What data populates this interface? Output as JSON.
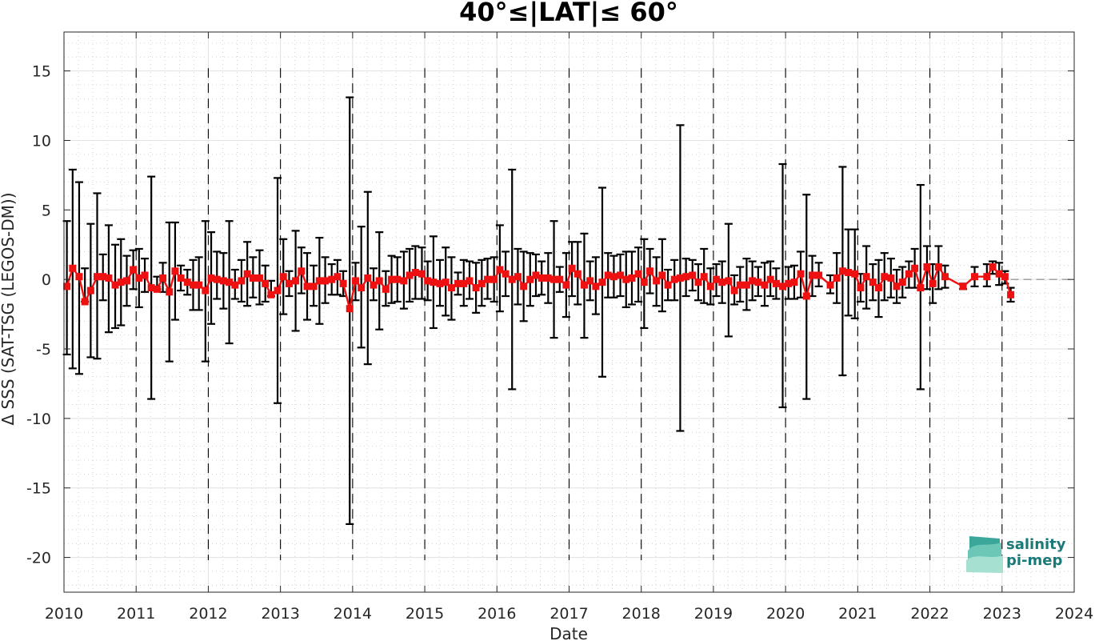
{
  "chart_data": {
    "type": "line",
    "title": "40°≤|LAT|≤ 60°",
    "xlabel": "Date",
    "ylabel": "Δ SSS (SAT-TSG (LEGOS-DM))",
    "xlim": [
      2010,
      2024
    ],
    "ylim": [
      -22.5,
      17.8
    ],
    "xticks": [
      2010,
      2011,
      2012,
      2013,
      2014,
      2015,
      2016,
      2017,
      2018,
      2019,
      2020,
      2021,
      2022,
      2023,
      2024
    ],
    "yticks": [
      -20,
      -15,
      -10,
      -5,
      0,
      5,
      10,
      15
    ],
    "grid": "dotted minor grid",
    "year_separators": "dashed vertical lines at each year",
    "reference_line": {
      "y": 0,
      "style": "dashed gray"
    },
    "series": [
      {
        "color": "#ee1111",
        "marker": "square",
        "errorbar_color": "#000000",
        "points": [
          {
            "x": 2010.04,
            "y": -0.5,
            "lo": -5.4,
            "hi": 4.2
          },
          {
            "x": 2010.12,
            "y": 0.8,
            "lo": -6.4,
            "hi": 7.9
          },
          {
            "x": 2010.21,
            "y": 0.2,
            "lo": -6.8,
            "hi": 7.0
          },
          {
            "x": 2010.29,
            "y": -1.6,
            "lo": -1.6,
            "hi": 0.8
          },
          {
            "x": 2010.37,
            "y": -0.8,
            "lo": -5.6,
            "hi": 4.0
          },
          {
            "x": 2010.46,
            "y": 0.2,
            "lo": -5.7,
            "hi": 6.2
          },
          {
            "x": 2010.54,
            "y": 0.2,
            "lo": -1.5,
            "hi": 1.8
          },
          {
            "x": 2010.62,
            "y": 0.1,
            "lo": -3.8,
            "hi": 3.9
          },
          {
            "x": 2010.71,
            "y": -0.4,
            "lo": -3.5,
            "hi": 2.5
          },
          {
            "x": 2010.79,
            "y": -0.2,
            "lo": -3.3,
            "hi": 2.9
          },
          {
            "x": 2010.87,
            "y": -0.1,
            "lo": -1.9,
            "hi": 1.7
          },
          {
            "x": 2010.96,
            "y": 0.7,
            "lo": -0.7,
            "hi": 2.1
          },
          {
            "x": 2011.04,
            "y": 0.1,
            "lo": -2.0,
            "hi": 2.2
          },
          {
            "x": 2011.12,
            "y": 0.3,
            "lo": -0.9,
            "hi": 1.5
          },
          {
            "x": 2011.21,
            "y": -0.6,
            "lo": -8.6,
            "hi": 7.4
          },
          {
            "x": 2011.29,
            "y": -0.7,
            "lo": -0.7,
            "hi": 0.2
          },
          {
            "x": 2011.37,
            "y": 0.1,
            "lo": -0.9,
            "hi": 1.2
          },
          {
            "x": 2011.46,
            "y": -0.9,
            "lo": -5.9,
            "hi": 4.1
          },
          {
            "x": 2011.54,
            "y": 0.6,
            "lo": -2.9,
            "hi": 4.1
          },
          {
            "x": 2011.62,
            "y": 0.1,
            "lo": -0.8,
            "hi": 1.0
          },
          {
            "x": 2011.71,
            "y": -0.2,
            "lo": -1.1,
            "hi": 0.7
          },
          {
            "x": 2011.79,
            "y": -0.4,
            "lo": -2.2,
            "hi": 1.4
          },
          {
            "x": 2011.87,
            "y": -0.4,
            "lo": -2.2,
            "hi": 1.6
          },
          {
            "x": 2011.96,
            "y": -0.8,
            "lo": -5.9,
            "hi": 4.2
          },
          {
            "x": 2012.04,
            "y": 0.1,
            "lo": -3.2,
            "hi": 3.4
          },
          {
            "x": 2012.12,
            "y": 0.0,
            "lo": -1.4,
            "hi": 2.0
          },
          {
            "x": 2012.21,
            "y": -0.1,
            "lo": -2.1,
            "hi": 1.9
          },
          {
            "x": 2012.29,
            "y": -0.2,
            "lo": -4.6,
            "hi": 4.2
          },
          {
            "x": 2012.37,
            "y": -0.4,
            "lo": -1.4,
            "hi": 0.7
          },
          {
            "x": 2012.46,
            "y": -0.1,
            "lo": -1.6,
            "hi": 1.4
          },
          {
            "x": 2012.54,
            "y": 0.4,
            "lo": -1.9,
            "hi": 2.7
          },
          {
            "x": 2012.62,
            "y": 0.1,
            "lo": -1.3,
            "hi": 1.6
          },
          {
            "x": 2012.71,
            "y": 0.1,
            "lo": -1.8,
            "hi": 2.1
          },
          {
            "x": 2012.79,
            "y": -0.3,
            "lo": -1.6,
            "hi": 1.0
          },
          {
            "x": 2012.87,
            "y": -1.1,
            "lo": -1.2,
            "hi": -0.1
          },
          {
            "x": 2012.96,
            "y": -0.8,
            "lo": -8.9,
            "hi": 7.3
          },
          {
            "x": 2013.04,
            "y": 0.2,
            "lo": -2.5,
            "hi": 2.9
          },
          {
            "x": 2013.12,
            "y": -0.3,
            "lo": -1.2,
            "hi": 0.6
          },
          {
            "x": 2013.21,
            "y": -0.1,
            "lo": -3.7,
            "hi": 3.5
          },
          {
            "x": 2013.29,
            "y": 0.6,
            "lo": -1.0,
            "hi": 2.3
          },
          {
            "x": 2013.37,
            "y": -0.5,
            "lo": -2.9,
            "hi": 1.9
          },
          {
            "x": 2013.46,
            "y": -0.5,
            "lo": -1.9,
            "hi": 1.0
          },
          {
            "x": 2013.54,
            "y": -0.1,
            "lo": -3.2,
            "hi": 3.0
          },
          {
            "x": 2013.62,
            "y": -0.1,
            "lo": -1.7,
            "hi": 1.6
          },
          {
            "x": 2013.71,
            "y": 0.0,
            "lo": -1.1,
            "hi": 1.1
          },
          {
            "x": 2013.79,
            "y": 0.2,
            "lo": -1.1,
            "hi": 1.4
          },
          {
            "x": 2013.87,
            "y": -0.3,
            "lo": -1.2,
            "hi": 0.6
          },
          {
            "x": 2013.96,
            "y": -2.1,
            "lo": -17.6,
            "hi": 13.1
          },
          {
            "x": 2014.04,
            "y": -0.1,
            "lo": -1.5,
            "hi": 1.2
          },
          {
            "x": 2014.12,
            "y": -0.6,
            "lo": -4.9,
            "hi": 3.8
          },
          {
            "x": 2014.21,
            "y": 0.1,
            "lo": -6.1,
            "hi": 6.3
          },
          {
            "x": 2014.29,
            "y": -0.4,
            "lo": -1.5,
            "hi": 0.8
          },
          {
            "x": 2014.37,
            "y": -0.1,
            "lo": -3.6,
            "hi": 3.4
          },
          {
            "x": 2014.46,
            "y": -0.7,
            "lo": -1.9,
            "hi": 0.6
          },
          {
            "x": 2014.54,
            "y": 0.0,
            "lo": -1.7,
            "hi": 1.7
          },
          {
            "x": 2014.62,
            "y": 0.0,
            "lo": -1.6,
            "hi": 1.6
          },
          {
            "x": 2014.71,
            "y": -0.1,
            "lo": -2.1,
            "hi": 2.0
          },
          {
            "x": 2014.79,
            "y": 0.3,
            "lo": -1.6,
            "hi": 2.2
          },
          {
            "x": 2014.87,
            "y": 0.5,
            "lo": -1.4,
            "hi": 2.4
          },
          {
            "x": 2014.96,
            "y": 0.4,
            "lo": -1.4,
            "hi": 2.3
          },
          {
            "x": 2015.04,
            "y": -0.1,
            "lo": -1.5,
            "hi": 1.3
          },
          {
            "x": 2015.12,
            "y": -0.2,
            "lo": -3.5,
            "hi": 3.1
          },
          {
            "x": 2015.21,
            "y": -0.3,
            "lo": -1.9,
            "hi": 1.4
          },
          {
            "x": 2015.29,
            "y": -0.2,
            "lo": -2.6,
            "hi": 2.3
          },
          {
            "x": 2015.37,
            "y": -0.6,
            "lo": -2.9,
            "hi": 1.6
          },
          {
            "x": 2015.46,
            "y": -0.3,
            "lo": -1.1,
            "hi": 0.5
          },
          {
            "x": 2015.54,
            "y": -0.3,
            "lo": -1.9,
            "hi": 1.4
          },
          {
            "x": 2015.62,
            "y": -0.1,
            "lo": -1.4,
            "hi": 1.3
          },
          {
            "x": 2015.71,
            "y": -0.6,
            "lo": -2.4,
            "hi": 1.2
          },
          {
            "x": 2015.79,
            "y": -0.3,
            "lo": -1.9,
            "hi": 1.4
          },
          {
            "x": 2015.87,
            "y": 0.0,
            "lo": -1.4,
            "hi": 1.5
          },
          {
            "x": 2015.96,
            "y": 0.0,
            "lo": -1.6,
            "hi": 1.6
          },
          {
            "x": 2016.04,
            "y": 0.7,
            "lo": -2.3,
            "hi": 3.9
          },
          {
            "x": 2016.12,
            "y": 0.4,
            "lo": -1.2,
            "hi": 2.0
          },
          {
            "x": 2016.21,
            "y": 0.0,
            "lo": -7.9,
            "hi": 7.9
          },
          {
            "x": 2016.29,
            "y": 0.2,
            "lo": -1.8,
            "hi": 2.2
          },
          {
            "x": 2016.37,
            "y": -0.5,
            "lo": -3.0,
            "hi": 2.0
          },
          {
            "x": 2016.46,
            "y": 0.0,
            "lo": -1.9,
            "hi": 1.9
          },
          {
            "x": 2016.54,
            "y": 0.3,
            "lo": -1.2,
            "hi": 1.8
          },
          {
            "x": 2016.62,
            "y": 0.1,
            "lo": -1.1,
            "hi": 1.3
          },
          {
            "x": 2016.71,
            "y": 0.1,
            "lo": -1.7,
            "hi": 1.9
          },
          {
            "x": 2016.79,
            "y": 0.0,
            "lo": -4.2,
            "hi": 4.2
          },
          {
            "x": 2016.87,
            "y": 0.0,
            "lo": -0.9,
            "hi": 0.9
          },
          {
            "x": 2016.96,
            "y": -0.4,
            "lo": -2.7,
            "hi": 1.9
          },
          {
            "x": 2017.04,
            "y": 0.8,
            "lo": -1.2,
            "hi": 2.7
          },
          {
            "x": 2017.12,
            "y": 0.4,
            "lo": -1.8,
            "hi": 2.7
          },
          {
            "x": 2017.21,
            "y": -0.4,
            "lo": -4.2,
            "hi": 3.3
          },
          {
            "x": 2017.29,
            "y": -0.1,
            "lo": -1.5,
            "hi": 1.3
          },
          {
            "x": 2017.37,
            "y": -0.5,
            "lo": -2.5,
            "hi": 1.6
          },
          {
            "x": 2017.46,
            "y": -0.2,
            "lo": -7.0,
            "hi": 6.6
          },
          {
            "x": 2017.54,
            "y": 0.3,
            "lo": -1.3,
            "hi": 1.9
          },
          {
            "x": 2017.62,
            "y": 0.2,
            "lo": -1.3,
            "hi": 1.7
          },
          {
            "x": 2017.71,
            "y": 0.3,
            "lo": -1.2,
            "hi": 1.8
          },
          {
            "x": 2017.79,
            "y": 0.0,
            "lo": -2.0,
            "hi": 2.0
          },
          {
            "x": 2017.87,
            "y": 0.1,
            "lo": -1.8,
            "hi": 2.0
          },
          {
            "x": 2017.96,
            "y": 0.4,
            "lo": -1.6,
            "hi": 2.3
          },
          {
            "x": 2018.04,
            "y": -0.2,
            "lo": -3.5,
            "hi": 2.9
          },
          {
            "x": 2018.12,
            "y": 0.6,
            "lo": -1.0,
            "hi": 2.2
          },
          {
            "x": 2018.21,
            "y": -0.1,
            "lo": -1.9,
            "hi": 1.6
          },
          {
            "x": 2018.29,
            "y": 0.3,
            "lo": -2.3,
            "hi": 2.9
          },
          {
            "x": 2018.37,
            "y": -0.4,
            "lo": -1.5,
            "hi": 0.7
          },
          {
            "x": 2018.46,
            "y": 0.0,
            "lo": -1.5,
            "hi": 1.4
          },
          {
            "x": 2018.54,
            "y": 0.1,
            "lo": -10.9,
            "hi": 11.1
          },
          {
            "x": 2018.62,
            "y": 0.2,
            "lo": -1.2,
            "hi": 1.5
          },
          {
            "x": 2018.71,
            "y": 0.3,
            "lo": -0.8,
            "hi": 1.4
          },
          {
            "x": 2018.79,
            "y": -0.2,
            "lo": -1.5,
            "hi": 1.1
          },
          {
            "x": 2018.87,
            "y": 0.2,
            "lo": -1.7,
            "hi": 2.2
          },
          {
            "x": 2018.96,
            "y": -0.5,
            "lo": -1.8,
            "hi": 0.8
          },
          {
            "x": 2019.04,
            "y": 0.0,
            "lo": -1.2,
            "hi": 1.1
          },
          {
            "x": 2019.12,
            "y": -0.2,
            "lo": -1.7,
            "hi": 1.3
          },
          {
            "x": 2019.21,
            "y": -0.1,
            "lo": -4.1,
            "hi": 4.0
          },
          {
            "x": 2019.29,
            "y": -0.8,
            "lo": -1.8,
            "hi": 0.3
          },
          {
            "x": 2019.37,
            "y": -0.4,
            "lo": -1.6,
            "hi": 0.9
          },
          {
            "x": 2019.46,
            "y": -0.4,
            "lo": -2.2,
            "hi": 1.5
          },
          {
            "x": 2019.54,
            "y": -0.1,
            "lo": -1.5,
            "hi": 1.3
          },
          {
            "x": 2019.62,
            "y": -0.2,
            "lo": -1.2,
            "hi": 0.9
          },
          {
            "x": 2019.71,
            "y": -0.4,
            "lo": -1.9,
            "hi": 1.2
          },
          {
            "x": 2019.79,
            "y": 0.0,
            "lo": -1.2,
            "hi": 1.3
          },
          {
            "x": 2019.87,
            "y": -0.3,
            "lo": -1.4,
            "hi": 0.8
          },
          {
            "x": 2019.96,
            "y": -0.5,
            "lo": -9.2,
            "hi": 8.3
          },
          {
            "x": 2020.04,
            "y": -0.3,
            "lo": -1.4,
            "hi": 0.9
          },
          {
            "x": 2020.12,
            "y": -0.2,
            "lo": -1.4,
            "hi": 1.0
          },
          {
            "x": 2020.21,
            "y": 0.4,
            "lo": -1.3,
            "hi": 2.0
          },
          {
            "x": 2020.29,
            "y": -1.2,
            "lo": -8.6,
            "hi": 6.1
          },
          {
            "x": 2020.37,
            "y": 0.3,
            "lo": -1.2,
            "hi": 1.7
          },
          {
            "x": 2020.46,
            "y": 0.3,
            "lo": -0.5,
            "hi": 1.2
          },
          {
            "x": 2020.62,
            "y": -0.4,
            "lo": -1.0,
            "hi": 0.3
          },
          {
            "x": 2020.71,
            "y": 0.1,
            "lo": -1.7,
            "hi": 1.9
          },
          {
            "x": 2020.79,
            "y": 0.6,
            "lo": -6.9,
            "hi": 8.1
          },
          {
            "x": 2020.87,
            "y": 0.5,
            "lo": -2.6,
            "hi": 3.6
          },
          {
            "x": 2020.96,
            "y": 0.4,
            "lo": -2.8,
            "hi": 3.6
          },
          {
            "x": 2021.04,
            "y": -0.6,
            "lo": -1.6,
            "hi": 0.4
          },
          {
            "x": 2021.12,
            "y": 0.2,
            "lo": -2.1,
            "hi": 2.4
          },
          {
            "x": 2021.21,
            "y": -0.2,
            "lo": -1.5,
            "hi": 1.1
          },
          {
            "x": 2021.29,
            "y": -0.6,
            "lo": -2.7,
            "hi": 1.4
          },
          {
            "x": 2021.37,
            "y": 0.2,
            "lo": -1.5,
            "hi": 1.9
          },
          {
            "x": 2021.46,
            "y": 0.1,
            "lo": -1.3,
            "hi": 1.5
          },
          {
            "x": 2021.54,
            "y": -0.5,
            "lo": -1.7,
            "hi": 0.7
          },
          {
            "x": 2021.62,
            "y": -0.2,
            "lo": -1.3,
            "hi": 0.9
          },
          {
            "x": 2021.71,
            "y": 0.4,
            "lo": -0.6,
            "hi": 1.3
          },
          {
            "x": 2021.79,
            "y": 0.8,
            "lo": -0.6,
            "hi": 2.2
          },
          {
            "x": 2021.87,
            "y": -0.6,
            "lo": -7.9,
            "hi": 6.8
          },
          {
            "x": 2021.96,
            "y": 0.9,
            "lo": -0.7,
            "hi": 2.4
          },
          {
            "x": 2022.04,
            "y": -0.3,
            "lo": -1.7,
            "hi": 1.1
          },
          {
            "x": 2022.12,
            "y": 0.9,
            "lo": -0.7,
            "hi": 2.4
          },
          {
            "x": 2022.21,
            "y": 0.2,
            "lo": -0.6,
            "hi": 1.0
          },
          {
            "x": 2022.46,
            "y": -0.5,
            "lo": -0.7,
            "hi": -0.3
          },
          {
            "x": 2022.62,
            "y": 0.2,
            "lo": -0.5,
            "hi": 0.9
          },
          {
            "x": 2022.79,
            "y": 0.2,
            "lo": -0.5,
            "hi": 1.1
          },
          {
            "x": 2022.87,
            "y": 0.9,
            "lo": 0.4,
            "hi": 1.3
          },
          {
            "x": 2022.96,
            "y": 0.4,
            "lo": -0.4,
            "hi": 1.2
          },
          {
            "x": 2023.04,
            "y": 0.2,
            "lo": -0.3,
            "hi": 0.6
          },
          {
            "x": 2023.12,
            "y": -1.1,
            "lo": -1.6,
            "hi": -0.6
          }
        ]
      }
    ]
  },
  "logo": {
    "line1": "salinity",
    "line2": "pi-mep",
    "color": "#1a7a78"
  }
}
